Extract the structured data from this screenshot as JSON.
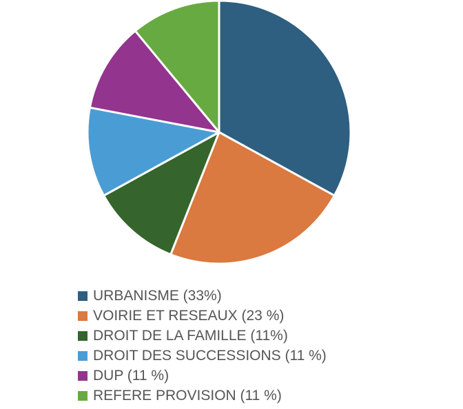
{
  "chart_data": {
    "type": "pie",
    "title": "",
    "slices": [
      {
        "label": "URBANISME (33%)",
        "value": 33,
        "color": "#2e5f80"
      },
      {
        "label": "VOIRIE ET RESEAUX (23 %)",
        "value": 23,
        "color": "#da7940"
      },
      {
        "label": "DROIT DE LA FAMILLE (11%)",
        "value": 11,
        "color": "#35652c"
      },
      {
        "label": "DROIT DES SUCCESSIONS (11 %)",
        "value": 11,
        "color": "#4a9dd4"
      },
      {
        "label": "DUP (11 %)",
        "value": 11,
        "color": "#93348e"
      },
      {
        "label": "REFERE PROVISION (11 %)",
        "value": 11,
        "color": "#68aa42"
      }
    ],
    "legend_position": "bottom-left"
  }
}
